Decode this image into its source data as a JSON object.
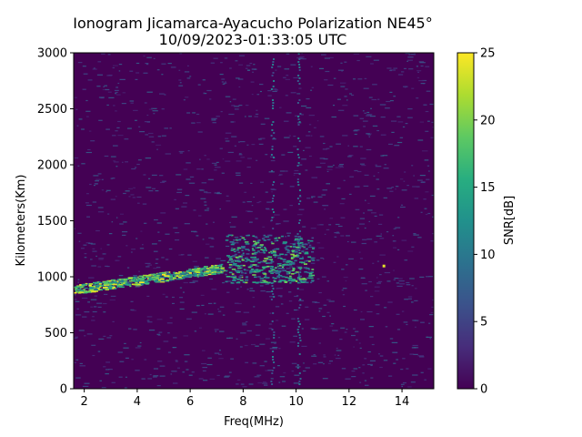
{
  "chart_data": {
    "type": "heatmap",
    "title": "Ionogram Jicamarca-Ayacucho Polarization NE45°",
    "subtitle": "10/09/2023-01:33:05 UTC",
    "xlabel": "Freq(MHz)",
    "ylabel": "Kilometers(Km)",
    "xlim": [
      1.6,
      15.2
    ],
    "ylim": [
      0,
      3000
    ],
    "xticks": [
      2,
      4,
      6,
      8,
      10,
      12,
      14
    ],
    "yticks": [
      0,
      500,
      1000,
      1500,
      2000,
      2500,
      3000
    ],
    "colorbar": {
      "label": "SNR[dB]",
      "range": [
        0,
        25
      ],
      "ticks": [
        0,
        5,
        10,
        15,
        20,
        25
      ],
      "colormap": "viridis"
    },
    "background_color": "#440154",
    "features": [
      {
        "name": "main echo trace",
        "x_start": 1.6,
        "y_start": 890,
        "x_end": 7.2,
        "y_end": 1080,
        "snr": 23
      },
      {
        "name": "spread echo cluster",
        "x_range": [
          7.3,
          10.6
        ],
        "y_range": [
          950,
          1380
        ],
        "snr": 18
      },
      {
        "name": "interference stripes",
        "x": [
          9.1,
          10.1
        ],
        "y_range": [
          0,
          3000
        ]
      },
      {
        "name": "isolated echo",
        "x": 13.3,
        "y": 1100,
        "snr": 24
      }
    ]
  }
}
